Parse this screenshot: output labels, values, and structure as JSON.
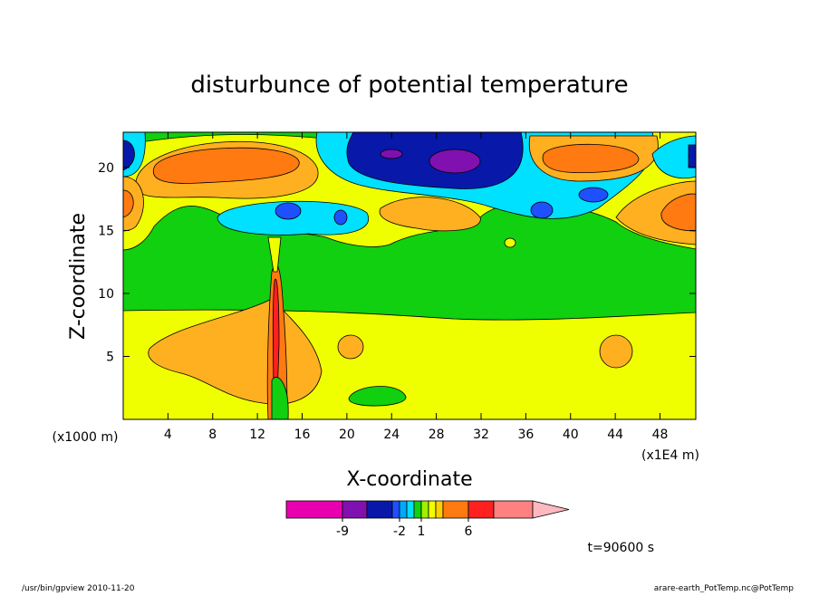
{
  "chart_data": {
    "type": "contour",
    "title": "disturbunce of potential temperature",
    "x_label": "X-coordinate",
    "y_label": "Z-coordinate",
    "x_unit_note": "(x1E4 m)",
    "y_unit_note": "(x1000 m)",
    "xlim": [
      0,
      51.2
    ],
    "ylim": [
      0,
      22.8
    ],
    "xticks": [
      4,
      8,
      12,
      16,
      20,
      24,
      28,
      32,
      36,
      40,
      44,
      48
    ],
    "yticks": [
      5,
      10,
      15,
      20
    ],
    "colorbar": {
      "colors": [
        "#e800b0",
        "#8010b0",
        "#0818a8",
        "#1e50ff",
        "#00a8ff",
        "#00e0ff",
        "#10d010",
        "#a0f000",
        "#f0ff00",
        "#ffd000",
        "#ff7a10",
        "#ff2020",
        "#ff8080",
        "#ffb8c0"
      ],
      "ticks": [
        -9,
        -2,
        1,
        6
      ]
    },
    "annotation": "t=90600 s",
    "footer_left": "/usr/bin/gpview  2010-11-20",
    "footer_right": "arare-earth_PotTemp.nc@PotTemp"
  }
}
